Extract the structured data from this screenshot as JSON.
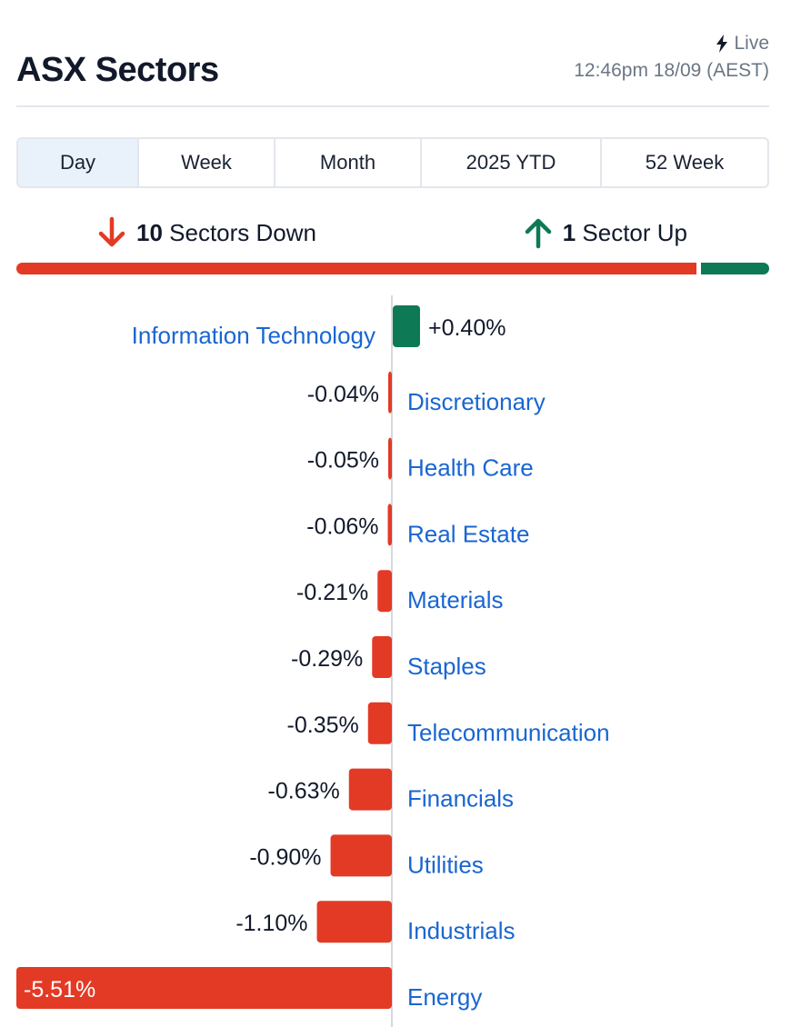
{
  "header": {
    "title": "ASX Sectors",
    "live_label": "Live",
    "timestamp": "12:46pm 18/09 (AEST)"
  },
  "tabs": [
    {
      "label": "Day",
      "active": true
    },
    {
      "label": "Week",
      "active": false
    },
    {
      "label": "Month",
      "active": false
    },
    {
      "label": "2025 YTD",
      "active": false
    },
    {
      "label": "52 Week",
      "active": false
    }
  ],
  "summary": {
    "down_count": "10",
    "down_text": "Sectors Down",
    "up_count": "1",
    "up_text": "Sector Up"
  },
  "colors": {
    "down": "#e33a25",
    "up": "#0e7a55",
    "link": "#1a66d1"
  },
  "chart_data": {
    "type": "bar",
    "orientation": "horizontal",
    "categories": [
      "Information Technology",
      "Discretionary",
      "Health Care",
      "Real Estate",
      "Materials",
      "Staples",
      "Telecommunication",
      "Financials",
      "Utilities",
      "Industrials",
      "Energy"
    ],
    "values": [
      0.4,
      -0.04,
      -0.05,
      -0.06,
      -0.21,
      -0.29,
      -0.35,
      -0.63,
      -0.9,
      -1.1,
      -5.51
    ],
    "value_labels": [
      "+0.40%",
      "-0.04%",
      "-0.05%",
      "-0.06%",
      "-0.21%",
      "-0.29%",
      "-0.35%",
      "-0.63%",
      "-0.90%",
      "-1.10%",
      "-5.51%"
    ],
    "unit": "%"
  }
}
